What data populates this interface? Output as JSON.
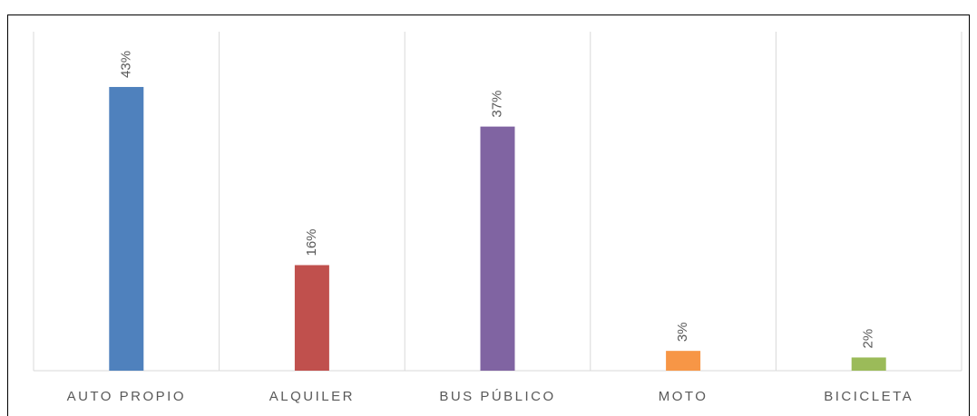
{
  "chart_data": {
    "type": "bar",
    "categories": [
      "AUTO PROPIO",
      "ALQUILER",
      "BUS PÚBLICO",
      "MOTO",
      "BICICLETA"
    ],
    "values": [
      43,
      16,
      37,
      3,
      2
    ],
    "value_labels": [
      "43%",
      "16%",
      "37%",
      "3%",
      "2%"
    ],
    "colors": [
      "#4f81bd",
      "#c0504d",
      "#8064a2",
      "#f79646",
      "#9bbb59"
    ],
    "ylim": [
      0,
      50
    ]
  }
}
